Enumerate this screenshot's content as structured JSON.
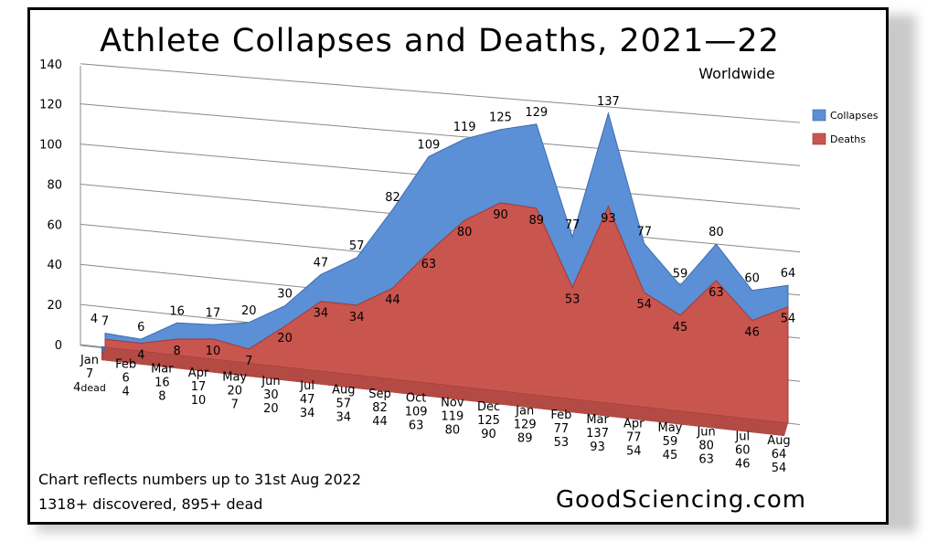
{
  "chart_data": {
    "type": "area",
    "title": "Athlete Collapses and Deaths, 2021—22",
    "subtitle": "Worldwide",
    "xlabel": "",
    "ylabel": "",
    "ylim": [
      0,
      140
    ],
    "yticks": [
      "0",
      "20",
      "40",
      "60",
      "80",
      "100",
      "120",
      "140"
    ],
    "categories": [
      "Jan",
      "Feb",
      "Mar",
      "Apr",
      "May",
      "Jun",
      "Jul",
      "Aug",
      "Sep",
      "Oct",
      "Nov",
      "Dec",
      "Jan",
      "Feb",
      "Mar",
      "Apr",
      "May",
      "Jun",
      "Jul",
      "Aug"
    ],
    "series": [
      {
        "name": "Collapses",
        "color": "#5b8fd6",
        "values": [
          7,
          6,
          16,
          17,
          20,
          30,
          47,
          57,
          82,
          109,
          119,
          125,
          129,
          77,
          137,
          77,
          59,
          80,
          60,
          64
        ]
      },
      {
        "name": "Deaths",
        "color": "#c9554f",
        "values": [
          4,
          4,
          8,
          10,
          7,
          20,
          34,
          34,
          44,
          63,
          80,
          90,
          89,
          53,
          93,
          54,
          45,
          63,
          46,
          54
        ]
      }
    ],
    "deaths_label_suffix": [
      "dead",
      "",
      "",
      "",
      "",
      "",
      "",
      "",
      "",
      "",
      "",
      "",
      "",
      "",
      "",
      "",
      "",
      "",
      "",
      ""
    ],
    "collapse_labels": [
      "7",
      "6",
      "16",
      "17",
      "20",
      "30",
      "47",
      "57",
      "82",
      "109",
      "119",
      "125",
      "129",
      "77",
      "137",
      "77",
      "59",
      "80",
      "60",
      "64"
    ],
    "death_labels": [
      "4",
      "4",
      "8",
      "10",
      "7",
      "20",
      "34",
      "34",
      "44",
      "63",
      "80",
      "90",
      "89",
      "53",
      "93",
      "54",
      "45",
      "63",
      "46",
      "54"
    ],
    "legend": "right",
    "grid": true
  },
  "footer": {
    "note_line1": "Chart reflects numbers up to 31st Aug 2022",
    "note_line2": "1318+ discovered, 895+ dead",
    "site": "GoodSciencing.com"
  }
}
